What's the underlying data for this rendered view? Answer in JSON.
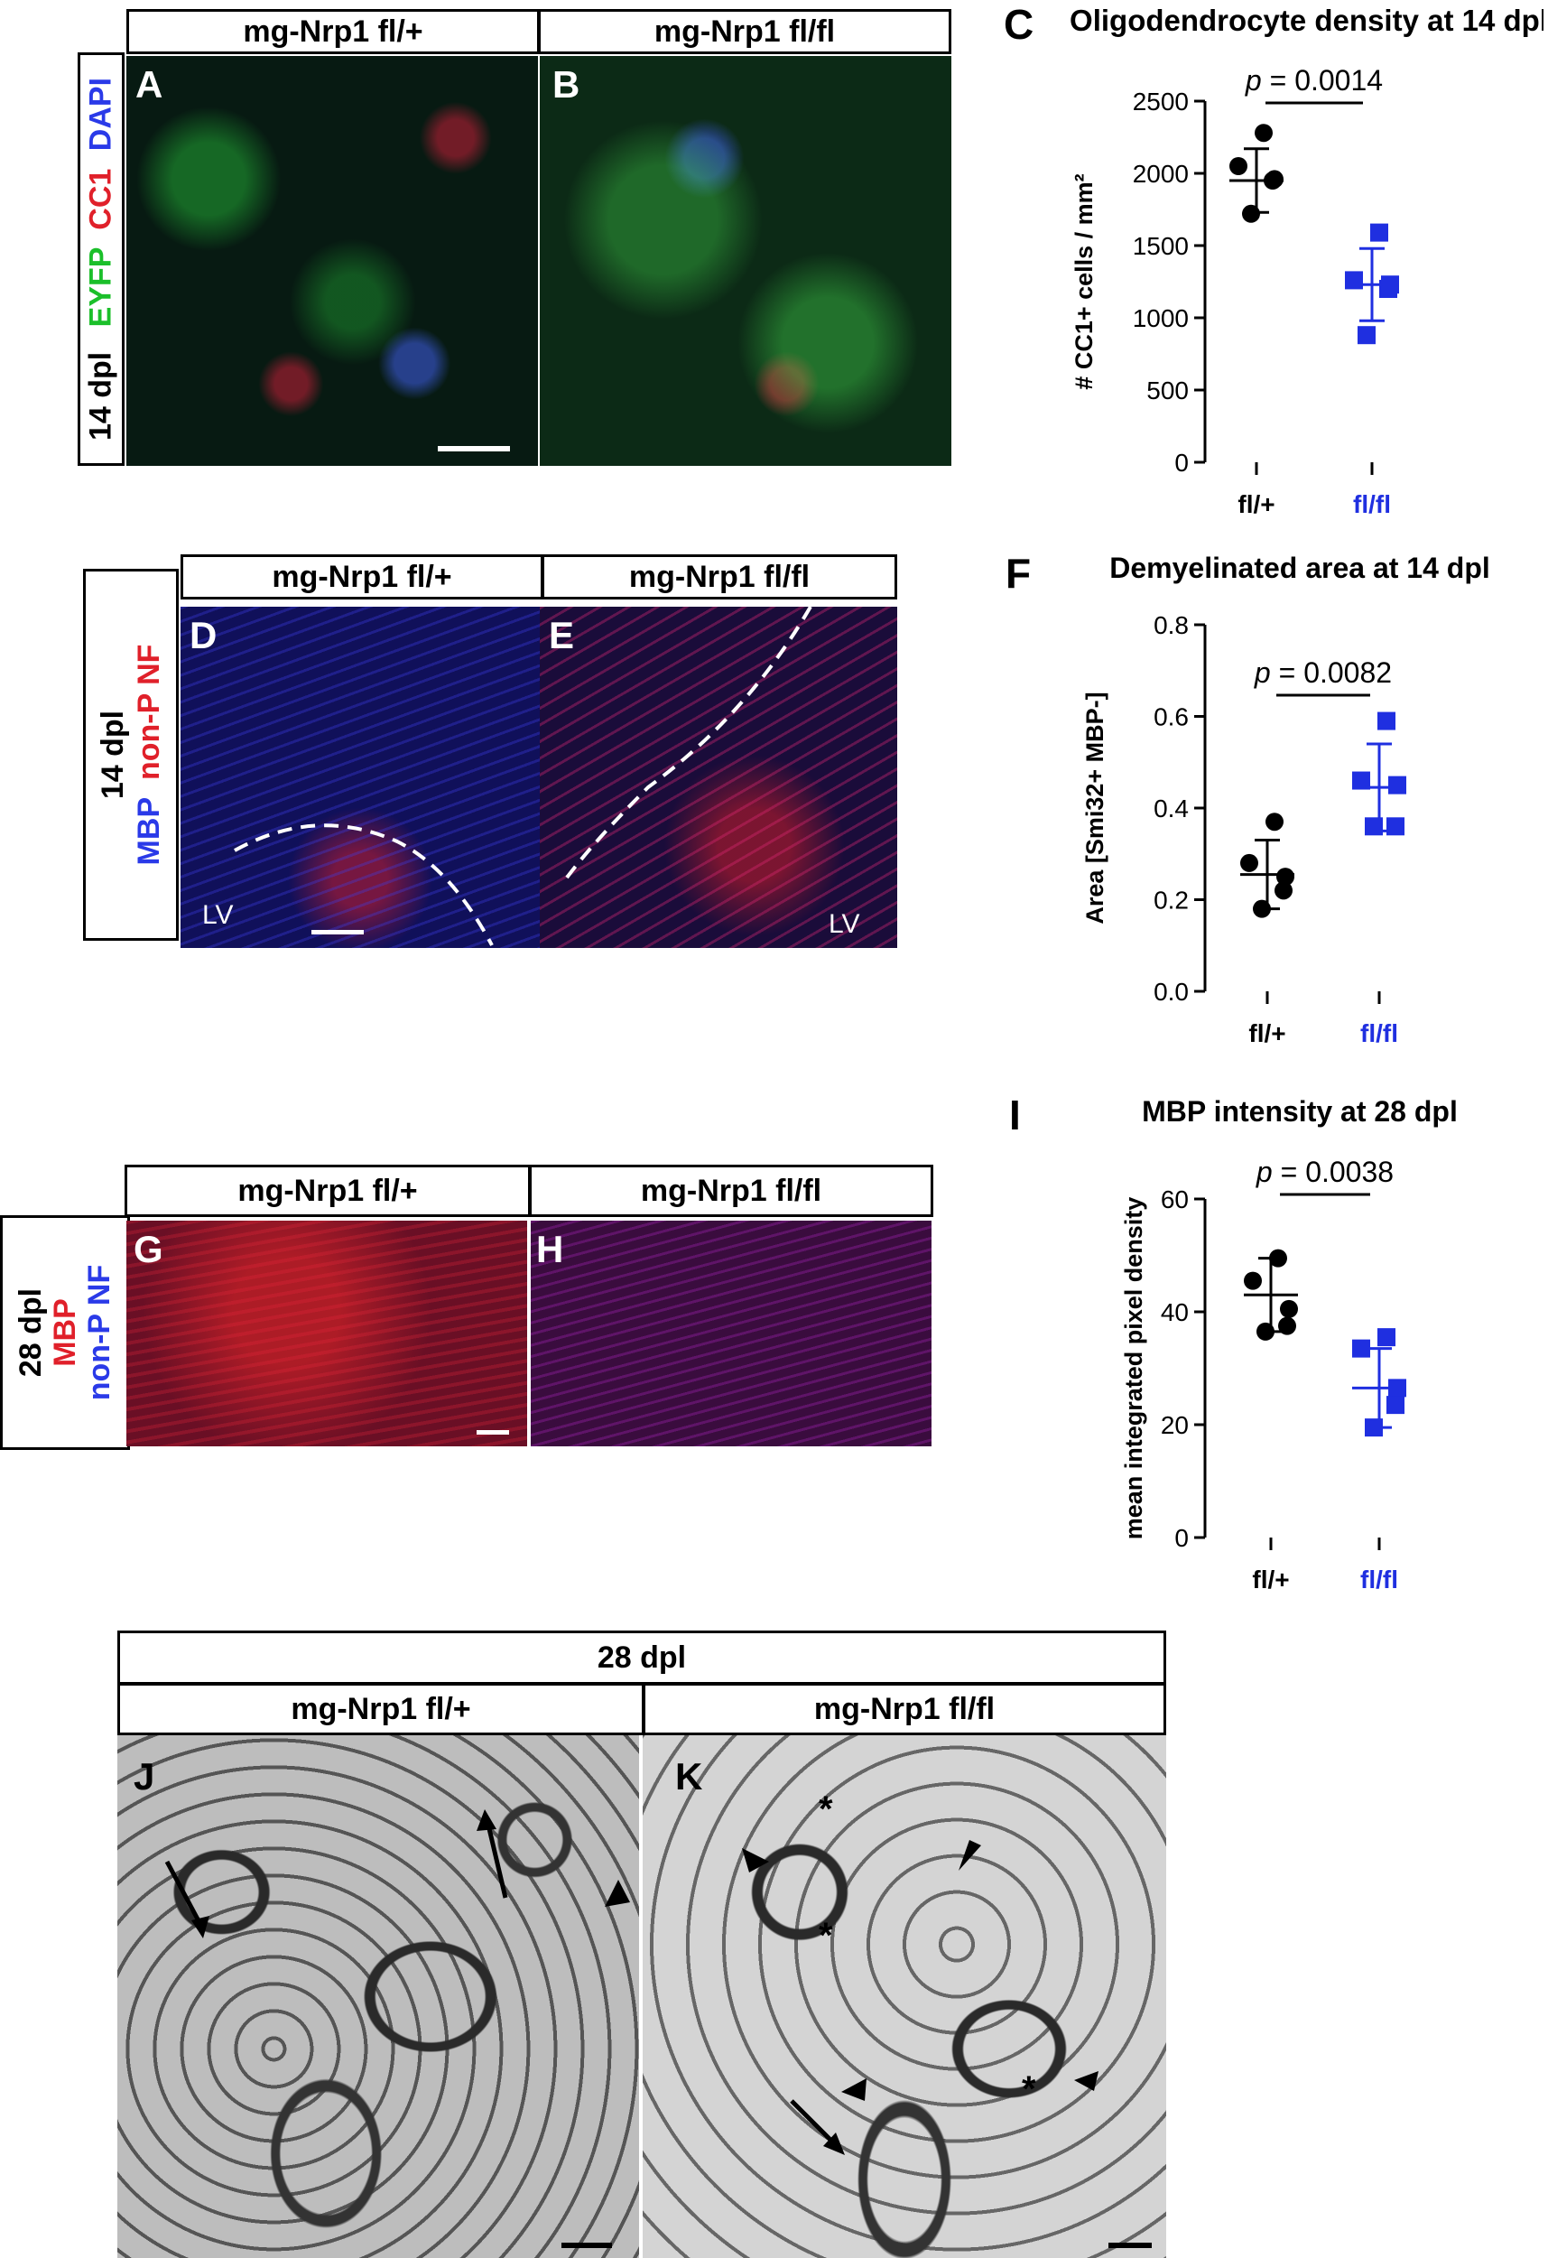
{
  "panel_labels": [
    "A",
    "B",
    "C",
    "D",
    "E",
    "F",
    "G",
    "H",
    "I",
    "J",
    "K"
  ],
  "row1": {
    "headers": [
      "mg-Nrp1 fl/+",
      "mg-Nrp1 fl/fl"
    ],
    "side": {
      "l1": "14 dpl",
      "l2_a": "EYFP",
      "l2_b": "CC1",
      "l2_c": "DAPI"
    }
  },
  "row2": {
    "headers": [
      "mg-Nrp1 fl/+",
      "mg-Nrp1 fl/fl"
    ],
    "side": {
      "l1": "14 dpl",
      "l2_a": "MBP",
      "l2_b": "non-P NF"
    },
    "lv": "LV"
  },
  "row3": {
    "headers": [
      "mg-Nrp1 fl/+",
      "mg-Nrp1 fl/fl"
    ],
    "side": {
      "l1": "28 dpl",
      "l2_a": "MBP",
      "l2_b": "non-P NF"
    }
  },
  "row4": {
    "top": "28 dpl",
    "headers": [
      "mg-Nrp1 fl/+",
      "mg-Nrp1 fl/fl"
    ],
    "asterisk": "*"
  },
  "colors": {
    "flplus": "#000000",
    "flfl": "#1f2fe0",
    "green": "#1bbf2a",
    "red": "#e0202a",
    "blue": "#2a3ae8"
  },
  "chart_data": [
    {
      "type": "scatter",
      "title": "Oligodendrocyte density at 14 dpl",
      "ylabel": "# CC1+ cells / mm²",
      "categories": [
        "fl/+",
        "fl/fl"
      ],
      "ylim": [
        0,
        2500
      ],
      "yticks": [
        "0",
        "500",
        "1000",
        "1500",
        "2000",
        "2500"
      ],
      "pvalue": "= 0.0014",
      "p": "p",
      "series": [
        {
          "values": [
            2280,
            2050,
            1960,
            1950,
            1720
          ],
          "mean": 1950,
          "sd": 220
        },
        {
          "values": [
            1590,
            1260,
            1230,
            1200,
            880
          ],
          "mean": 1230,
          "sd": 250
        }
      ]
    },
    {
      "type": "scatter",
      "title": "Demyelinated area at 14 dpl",
      "ylabel": "Area [Smi32+ MBP-]",
      "categories": [
        "fl/+",
        "fl/fl"
      ],
      "ylim": [
        0,
        0.8
      ],
      "yticks": [
        "0.0",
        "0.2",
        "0.4",
        "0.6",
        "0.8"
      ],
      "pvalue": "= 0.0082",
      "p": "p",
      "series": [
        {
          "values": [
            0.37,
            0.28,
            0.25,
            0.22,
            0.18
          ],
          "mean": 0.255,
          "sd": 0.075
        },
        {
          "values": [
            0.59,
            0.46,
            0.45,
            0.36,
            0.36
          ],
          "mean": 0.445,
          "sd": 0.095
        }
      ]
    },
    {
      "type": "scatter",
      "title": "MBP intensity at 28 dpl",
      "ylabel": "mean integrated pixel density",
      "categories": [
        "fl/+",
        "fl/fl"
      ],
      "ylim": [
        0,
        60
      ],
      "yticks": [
        "0",
        "20",
        "40",
        "60"
      ],
      "pvalue": "= 0.0038",
      "p": "p",
      "series": [
        {
          "values": [
            49.5,
            45.5,
            40.5,
            37.5,
            36.5
          ],
          "mean": 43,
          "sd": 6.5
        },
        {
          "values": [
            35.5,
            33.5,
            26.5,
            23.5,
            19.5
          ],
          "mean": 26.5,
          "sd": 7
        }
      ]
    }
  ]
}
